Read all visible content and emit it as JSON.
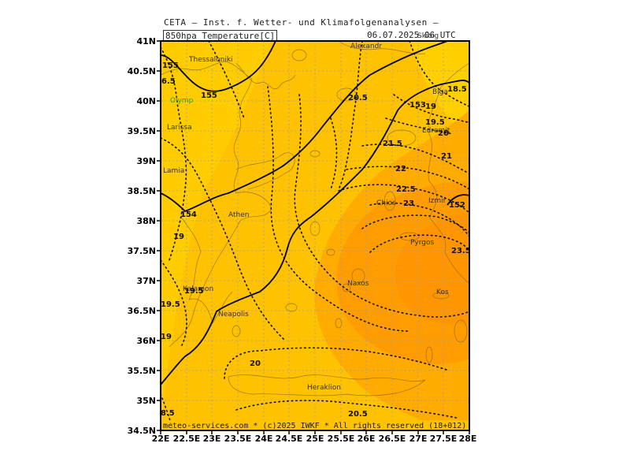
{
  "header": {
    "title": "CETA – Inst. f. Wetter- und Klimafolgenanalysen –",
    "variable": "850hpa_Temperature[C]",
    "valid_time": "06.07.2025 06 UTC"
  },
  "axes": {
    "x_ticks": [
      "22E",
      "22.5E",
      "23E",
      "23.5E",
      "24E",
      "24.5E",
      "25E",
      "25.5E",
      "26E",
      "26.5E",
      "27E",
      "27.5E",
      "28E"
    ],
    "y_ticks": [
      "41N",
      "40.5N",
      "40N",
      "39.5N",
      "39N",
      "38.5N",
      "38N",
      "37.5N",
      "37N",
      "36.5N",
      "36N",
      "35.5N",
      "35N",
      "34.5N"
    ]
  },
  "places": {
    "thessaloniki": "Thessaloniki",
    "alexandr": "Alexandr",
    "skiathos_partial": "Skioig",
    "olymp": "Olymp",
    "larissa": "Larissa",
    "lamia": "Lamia",
    "athen": "Athen",
    "chios": "Chios",
    "izmir": "Izmir",
    "edremit": "Edremit",
    "biga": "Biga",
    "pyrgos": "Pyrgos",
    "naxos": "Naxos",
    "kos": "Kos",
    "kalamon": "Kalamon",
    "neapolis": "Neapolis",
    "heraklion": "Heraklion"
  },
  "contour_labels": {
    "solid": {
      "c155_top": "155",
      "c155": "155",
      "c154": "154",
      "c153": "153",
      "c152": "152"
    },
    "dotted": {
      "t65": "6.5",
      "t205a": "20.5",
      "t185": "18.5",
      "t19a": "19",
      "t195a": "19.5",
      "t20a": "20",
      "t21a": "21",
      "t215": "21.5",
      "t22": "22",
      "t225": "22.5",
      "t23": "23",
      "t235": "23.5",
      "t19b": "19",
      "t195b": "19.5",
      "t195c": "19.5",
      "t19c": "19",
      "t20b": "20",
      "t205b": "20.5",
      "t85": "8.5"
    }
  },
  "footer": "meteo-services.com * (c)2025 IWKF * All rights reserved (18+012)",
  "colors": {
    "cool": "#ffd000",
    "mid": "#ffb400",
    "warm": "#ff9a00",
    "contour": "#000000",
    "grid": "#9aa0b4",
    "coast": "#8c6a10"
  }
}
